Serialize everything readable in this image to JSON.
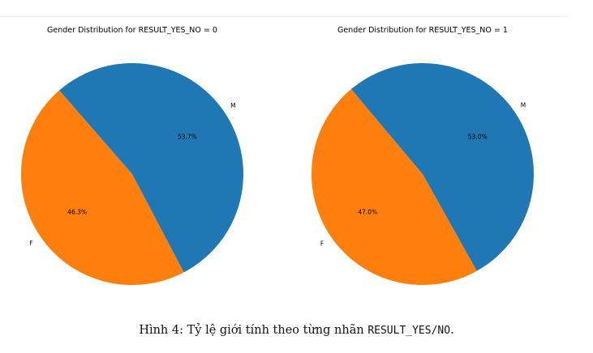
{
  "chart_data": [
    {
      "type": "pie",
      "title": "Gender Distribution for RESULT_YES_NO = 0",
      "labels": [
        "F",
        "M"
      ],
      "values": [
        46.3,
        53.7
      ],
      "value_labels": [
        "46.3%",
        "53.7%"
      ],
      "colors": [
        "#ff7f0e",
        "#1f77b4"
      ]
    },
    {
      "type": "pie",
      "title": "Gender Distribution for RESULT_YES_NO = 1",
      "labels": [
        "F",
        "M"
      ],
      "values": [
        47.0,
        53.0
      ],
      "value_labels": [
        "47.0%",
        "53.0%"
      ],
      "colors": [
        "#ff7f0e",
        "#1f77b4"
      ]
    }
  ],
  "caption": {
    "prefix": "Hình 4: Tỷ lệ giới tính theo từng nhãn ",
    "code": "RESULT_YES/NO",
    "suffix": "."
  }
}
